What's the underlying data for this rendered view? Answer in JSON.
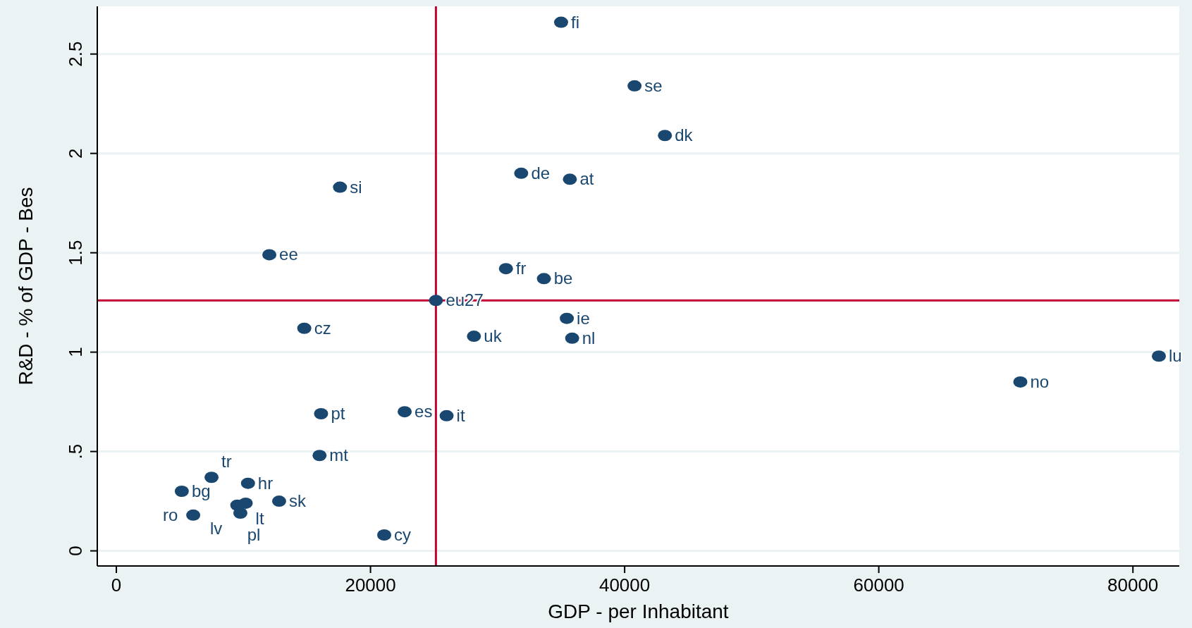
{
  "chart_data": {
    "type": "scatter",
    "xlabel": "GDP - per Inhabitant",
    "ylabel": "R&D - % of GDP - Bes",
    "xlim": [
      -1500,
      83650
    ],
    "xticks": [
      0,
      20000,
      40000,
      60000,
      80000
    ],
    "ylim": [
      -0.076,
      2.74
    ],
    "yticks": [
      0,
      {
        "value": 0.5,
        "label": ".5"
      },
      1,
      1.5,
      2,
      2.5
    ],
    "grid": "y",
    "marker": "circle",
    "series": [
      {
        "color": "#1a476f",
        "x": [
          35000,
          40780,
          43170,
          31860,
          35690,
          17600,
          12040,
          30660,
          33650,
          25150,
          35450,
          14790,
          28140,
          35870,
          82040,
          71140,
          16110,
          22690,
          25990,
          15990,
          7490,
          10360,
          5150,
          12810,
          9520,
          10180,
          9760,
          6050,
          21080
        ],
        "values": [
          2.66,
          2.34,
          2.09,
          1.9,
          1.87,
          1.83,
          1.49,
          1.42,
          1.37,
          1.26,
          1.17,
          1.12,
          1.08,
          1.07,
          0.98,
          0.85,
          0.69,
          0.7,
          0.68,
          0.48,
          0.37,
          0.34,
          0.3,
          0.25,
          0.23,
          0.24,
          0.19,
          0.18,
          0.08
        ]
      }
    ],
    "annotations": [
      {
        "text": "fi",
        "x": 35000,
        "y": 2.66
      },
      {
        "text": "se",
        "x": 40780,
        "y": 2.34
      },
      {
        "text": "dk",
        "x": 43170,
        "y": 2.09
      },
      {
        "text": "de",
        "x": 31860,
        "y": 1.9
      },
      {
        "text": "at",
        "x": 35690,
        "y": 1.87
      },
      {
        "text": "si",
        "x": 17600,
        "y": 1.83
      },
      {
        "text": "ee",
        "x": 12040,
        "y": 1.49
      },
      {
        "text": "fr",
        "x": 30660,
        "y": 1.42
      },
      {
        "text": "be",
        "x": 33650,
        "y": 1.37
      },
      {
        "text": "eu27",
        "x": 25150,
        "y": 1.26
      },
      {
        "text": "ie",
        "x": 35450,
        "y": 1.17
      },
      {
        "text": "cz",
        "x": 14790,
        "y": 1.12
      },
      {
        "text": "uk",
        "x": 28140,
        "y": 1.08
      },
      {
        "text": "nl",
        "x": 35870,
        "y": 1.07
      },
      {
        "text": "lu",
        "x": 82040,
        "y": 0.98
      },
      {
        "text": "no",
        "x": 71140,
        "y": 0.85
      },
      {
        "text": "pt",
        "x": 16110,
        "y": 0.69
      },
      {
        "text": "es",
        "x": 22690,
        "y": 0.7
      },
      {
        "text": "it",
        "x": 25990,
        "y": 0.68
      },
      {
        "text": "mt",
        "x": 15990,
        "y": 0.48
      },
      {
        "text": "tr",
        "x": 7490,
        "y": 0.37
      },
      {
        "text": "hr",
        "x": 10360,
        "y": 0.34
      },
      {
        "text": "bg",
        "x": 5150,
        "y": 0.3
      },
      {
        "text": "sk",
        "x": 12810,
        "y": 0.25
      },
      {
        "text": "pl",
        "x": 9520,
        "y": 0.23
      },
      {
        "text": "lt",
        "x": 10180,
        "y": 0.24
      },
      {
        "text": "lv",
        "x": 9760,
        "y": 0.19
      },
      {
        "text": "ro",
        "x": 6050,
        "y": 0.18
      },
      {
        "text": "cy",
        "x": 21080,
        "y": 0.08
      }
    ],
    "ref_lines": [
      {
        "axis": "x",
        "value": 25150,
        "color": "#c10534"
      },
      {
        "axis": "y",
        "value": 1.26,
        "color": "#c10534"
      }
    ]
  }
}
